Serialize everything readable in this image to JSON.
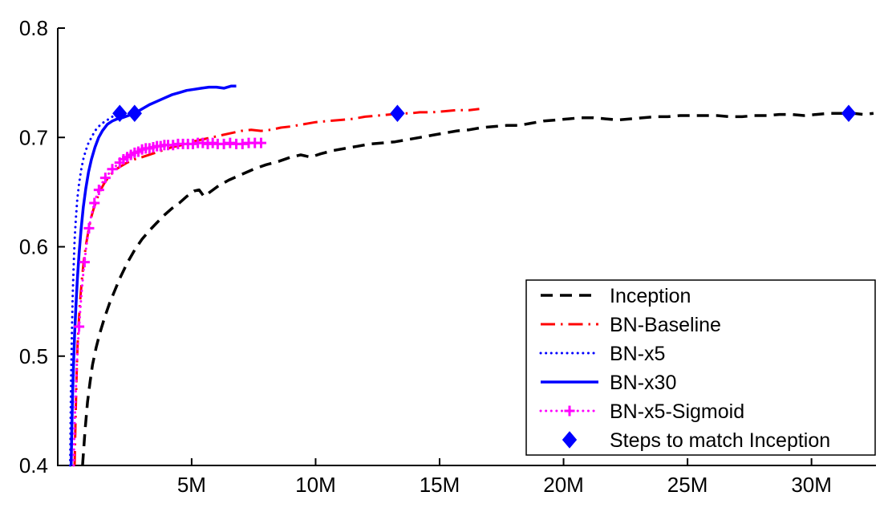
{
  "chart_data": {
    "type": "line",
    "grid": false,
    "background": "#ffffff",
    "axis_color": "#000000",
    "xlim": [
      -0.4,
      32.6
    ],
    "ylim": [
      0.4,
      0.8
    ],
    "x_ticks": [
      5,
      10,
      15,
      20,
      25,
      30
    ],
    "x_tick_labels": [
      "5M",
      "10M",
      "15M",
      "20M",
      "25M",
      "30M"
    ],
    "y_ticks": [
      0.4,
      0.5,
      0.6,
      0.7,
      0.8
    ],
    "y_tick_labels": [
      "0.4",
      "0.5",
      "0.6",
      "0.7",
      "0.8"
    ],
    "legend_position": "lower right",
    "series": [
      {
        "name": "Inception",
        "color": "#000000",
        "style": "dashed",
        "width": 3.5,
        "points": [
          [
            0.6,
            0.4
          ],
          [
            0.7,
            0.432
          ],
          [
            0.8,
            0.458
          ],
          [
            0.9,
            0.476
          ],
          [
            1.0,
            0.492
          ],
          [
            1.15,
            0.508
          ],
          [
            1.3,
            0.521
          ],
          [
            1.5,
            0.536
          ],
          [
            1.7,
            0.549
          ],
          [
            1.9,
            0.56
          ],
          [
            2.1,
            0.571
          ],
          [
            2.4,
            0.585
          ],
          [
            2.7,
            0.597
          ],
          [
            3.0,
            0.607
          ],
          [
            3.3,
            0.615
          ],
          [
            3.6,
            0.622
          ],
          [
            3.9,
            0.629
          ],
          [
            4.2,
            0.635
          ],
          [
            4.5,
            0.64
          ],
          [
            4.8,
            0.646
          ],
          [
            5.1,
            0.651
          ],
          [
            5.3,
            0.652
          ],
          [
            5.5,
            0.646
          ],
          [
            5.8,
            0.651
          ],
          [
            6.1,
            0.656
          ],
          [
            6.5,
            0.661
          ],
          [
            7.0,
            0.666
          ],
          [
            7.5,
            0.671
          ],
          [
            8.0,
            0.675
          ],
          [
            8.5,
            0.678
          ],
          [
            9.0,
            0.682
          ],
          [
            9.4,
            0.684
          ],
          [
            9.8,
            0.682
          ],
          [
            10.2,
            0.685
          ],
          [
            10.7,
            0.688
          ],
          [
            11.2,
            0.69
          ],
          [
            11.7,
            0.692
          ],
          [
            12.2,
            0.694
          ],
          [
            12.7,
            0.695
          ],
          [
            13.2,
            0.696
          ],
          [
            13.7,
            0.698
          ],
          [
            14.2,
            0.7
          ],
          [
            14.7,
            0.702
          ],
          [
            15.2,
            0.704
          ],
          [
            15.7,
            0.706
          ],
          [
            16.2,
            0.707
          ],
          [
            16.7,
            0.709
          ],
          [
            17.2,
            0.71
          ],
          [
            17.7,
            0.711
          ],
          [
            18.2,
            0.711
          ],
          [
            18.7,
            0.713
          ],
          [
            19.2,
            0.715
          ],
          [
            19.7,
            0.716
          ],
          [
            20.2,
            0.717
          ],
          [
            20.7,
            0.718
          ],
          [
            21.2,
            0.718
          ],
          [
            21.7,
            0.717
          ],
          [
            22.2,
            0.716
          ],
          [
            22.7,
            0.717
          ],
          [
            23.2,
            0.718
          ],
          [
            23.7,
            0.719
          ],
          [
            24.2,
            0.719
          ],
          [
            24.7,
            0.72
          ],
          [
            25.2,
            0.72
          ],
          [
            25.7,
            0.72
          ],
          [
            26.2,
            0.72
          ],
          [
            26.7,
            0.719
          ],
          [
            27.2,
            0.719
          ],
          [
            27.7,
            0.72
          ],
          [
            28.2,
            0.72
          ],
          [
            28.7,
            0.721
          ],
          [
            29.2,
            0.721
          ],
          [
            29.7,
            0.72
          ],
          [
            30.2,
            0.721
          ],
          [
            30.7,
            0.722
          ],
          [
            31.2,
            0.722
          ],
          [
            31.7,
            0.722
          ],
          [
            32.1,
            0.721
          ],
          [
            32.5,
            0.722
          ]
        ]
      },
      {
        "name": "BN-Baseline",
        "color": "#ff0000",
        "style": "dashdot",
        "width": 3,
        "points": [
          [
            0.28,
            0.4
          ],
          [
            0.32,
            0.447
          ],
          [
            0.36,
            0.483
          ],
          [
            0.4,
            0.51
          ],
          [
            0.45,
            0.532
          ],
          [
            0.5,
            0.55
          ],
          [
            0.58,
            0.572
          ],
          [
            0.66,
            0.589
          ],
          [
            0.75,
            0.603
          ],
          [
            0.85,
            0.616
          ],
          [
            0.95,
            0.627
          ],
          [
            1.05,
            0.635
          ],
          [
            1.2,
            0.645
          ],
          [
            1.35,
            0.653
          ],
          [
            1.5,
            0.659
          ],
          [
            1.7,
            0.665
          ],
          [
            1.9,
            0.67
          ],
          [
            2.1,
            0.673
          ],
          [
            2.4,
            0.677
          ],
          [
            2.7,
            0.68
          ],
          [
            3.0,
            0.682
          ],
          [
            3.4,
            0.685
          ],
          [
            3.8,
            0.688
          ],
          [
            4.2,
            0.691
          ],
          [
            4.6,
            0.693
          ],
          [
            5.0,
            0.696
          ],
          [
            5.4,
            0.698
          ],
          [
            5.8,
            0.7
          ],
          [
            6.2,
            0.702
          ],
          [
            6.6,
            0.704
          ],
          [
            7.0,
            0.706
          ],
          [
            7.4,
            0.707
          ],
          [
            7.8,
            0.706
          ],
          [
            8.2,
            0.707
          ],
          [
            8.6,
            0.709
          ],
          [
            9.0,
            0.71
          ],
          [
            9.5,
            0.712
          ],
          [
            10.0,
            0.714
          ],
          [
            10.5,
            0.715
          ],
          [
            11.0,
            0.716
          ],
          [
            11.5,
            0.717
          ],
          [
            12.0,
            0.719
          ],
          [
            12.5,
            0.72
          ],
          [
            13.0,
            0.721
          ],
          [
            13.4,
            0.722
          ],
          [
            13.8,
            0.722
          ],
          [
            14.2,
            0.723
          ],
          [
            14.7,
            0.723
          ],
          [
            15.2,
            0.724
          ],
          [
            15.7,
            0.725
          ],
          [
            16.2,
            0.725
          ],
          [
            16.6,
            0.726
          ]
        ]
      },
      {
        "name": "BN-x5",
        "color": "#0000ff",
        "style": "dotted",
        "width": 3,
        "points": [
          [
            0.1,
            0.4
          ],
          [
            0.12,
            0.445
          ],
          [
            0.14,
            0.482
          ],
          [
            0.17,
            0.52
          ],
          [
            0.2,
            0.552
          ],
          [
            0.24,
            0.582
          ],
          [
            0.28,
            0.606
          ],
          [
            0.33,
            0.626
          ],
          [
            0.39,
            0.644
          ],
          [
            0.46,
            0.658
          ],
          [
            0.54,
            0.67
          ],
          [
            0.63,
            0.68
          ],
          [
            0.73,
            0.688
          ],
          [
            0.84,
            0.695
          ],
          [
            0.96,
            0.7
          ],
          [
            1.1,
            0.706
          ],
          [
            1.25,
            0.71
          ],
          [
            1.4,
            0.713
          ],
          [
            1.6,
            0.716
          ],
          [
            1.8,
            0.719
          ],
          [
            2.0,
            0.721
          ],
          [
            2.15,
            0.722
          ]
        ]
      },
      {
        "name": "BN-x30",
        "color": "#0000ff",
        "style": "solid",
        "width": 3.5,
        "points": [
          [
            0.14,
            0.4
          ],
          [
            0.17,
            0.435
          ],
          [
            0.2,
            0.465
          ],
          [
            0.24,
            0.495
          ],
          [
            0.28,
            0.52
          ],
          [
            0.33,
            0.545
          ],
          [
            0.39,
            0.57
          ],
          [
            0.46,
            0.594
          ],
          [
            0.54,
            0.616
          ],
          [
            0.63,
            0.636
          ],
          [
            0.73,
            0.653
          ],
          [
            0.84,
            0.668
          ],
          [
            0.96,
            0.68
          ],
          [
            1.1,
            0.691
          ],
          [
            1.25,
            0.7
          ],
          [
            1.4,
            0.706
          ],
          [
            1.6,
            0.712
          ],
          [
            1.8,
            0.715
          ],
          [
            2.0,
            0.717
          ],
          [
            2.2,
            0.718
          ],
          [
            2.45,
            0.72
          ],
          [
            2.7,
            0.722
          ],
          [
            3.0,
            0.726
          ],
          [
            3.3,
            0.73
          ],
          [
            3.6,
            0.733
          ],
          [
            3.9,
            0.736
          ],
          [
            4.2,
            0.739
          ],
          [
            4.5,
            0.741
          ],
          [
            4.8,
            0.743
          ],
          [
            5.1,
            0.744
          ],
          [
            5.4,
            0.745
          ],
          [
            5.7,
            0.746
          ],
          [
            6.0,
            0.746
          ],
          [
            6.3,
            0.745
          ],
          [
            6.6,
            0.747
          ],
          [
            6.8,
            0.747
          ]
        ]
      },
      {
        "name": "BN-x5-Sigmoid",
        "color": "#ff00ff",
        "style": "dotted",
        "width": 3,
        "marker": "plus",
        "points": [
          [
            0.24,
            0.4
          ],
          [
            0.28,
            0.436
          ],
          [
            0.32,
            0.465
          ],
          [
            0.37,
            0.492
          ],
          [
            0.42,
            0.513
          ],
          [
            0.46,
            0.527
          ],
          [
            0.52,
            0.546
          ],
          [
            0.58,
            0.563
          ],
          [
            0.64,
            0.578
          ],
          [
            0.68,
            0.586
          ],
          [
            0.74,
            0.598
          ],
          [
            0.8,
            0.608
          ],
          [
            0.86,
            0.617
          ],
          [
            0.93,
            0.626
          ],
          [
            1.0,
            0.633
          ],
          [
            1.08,
            0.64
          ],
          [
            1.16,
            0.646
          ],
          [
            1.26,
            0.652
          ],
          [
            1.38,
            0.658
          ],
          [
            1.52,
            0.663
          ],
          [
            1.66,
            0.667
          ],
          [
            1.8,
            0.671
          ],
          [
            1.95,
            0.674
          ],
          [
            2.1,
            0.677
          ],
          [
            2.25,
            0.68
          ],
          [
            2.4,
            0.682
          ],
          [
            2.55,
            0.684
          ],
          [
            2.7,
            0.686
          ],
          [
            2.85,
            0.687
          ],
          [
            3.0,
            0.689
          ],
          [
            3.15,
            0.69
          ],
          [
            3.3,
            0.69
          ],
          [
            3.45,
            0.691
          ],
          [
            3.6,
            0.692
          ],
          [
            3.75,
            0.692
          ],
          [
            3.9,
            0.693
          ],
          [
            4.05,
            0.693
          ],
          [
            4.25,
            0.693
          ],
          [
            4.45,
            0.694
          ],
          [
            4.65,
            0.694
          ],
          [
            4.85,
            0.694
          ],
          [
            5.05,
            0.694
          ],
          [
            5.25,
            0.695
          ],
          [
            5.45,
            0.695
          ],
          [
            5.65,
            0.694
          ],
          [
            5.85,
            0.695
          ],
          [
            6.05,
            0.694
          ],
          [
            6.3,
            0.694
          ],
          [
            6.55,
            0.695
          ],
          [
            6.8,
            0.694
          ],
          [
            7.05,
            0.694
          ],
          [
            7.3,
            0.695
          ],
          [
            7.55,
            0.695
          ],
          [
            7.8,
            0.695
          ]
        ],
        "marker_points": [
          [
            0.46,
            0.527
          ],
          [
            0.68,
            0.586
          ],
          [
            0.86,
            0.617
          ],
          [
            1.08,
            0.64
          ],
          [
            1.26,
            0.652
          ],
          [
            1.52,
            0.663
          ],
          [
            1.8,
            0.671
          ],
          [
            2.1,
            0.677
          ],
          [
            2.25,
            0.68
          ],
          [
            2.4,
            0.682
          ],
          [
            2.55,
            0.684
          ],
          [
            2.7,
            0.686
          ],
          [
            2.85,
            0.687
          ],
          [
            3.0,
            0.689
          ],
          [
            3.15,
            0.69
          ],
          [
            3.3,
            0.69
          ],
          [
            3.45,
            0.691
          ],
          [
            3.6,
            0.692
          ],
          [
            3.75,
            0.692
          ],
          [
            3.9,
            0.693
          ],
          [
            4.05,
            0.693
          ],
          [
            4.25,
            0.693
          ],
          [
            4.45,
            0.694
          ],
          [
            4.65,
            0.694
          ],
          [
            4.85,
            0.694
          ],
          [
            5.05,
            0.694
          ],
          [
            5.25,
            0.695
          ],
          [
            5.45,
            0.695
          ],
          [
            5.65,
            0.694
          ],
          [
            5.85,
            0.695
          ],
          [
            6.05,
            0.694
          ],
          [
            6.3,
            0.694
          ],
          [
            6.55,
            0.695
          ],
          [
            6.8,
            0.694
          ],
          [
            7.05,
            0.694
          ],
          [
            7.3,
            0.695
          ],
          [
            7.55,
            0.695
          ],
          [
            7.8,
            0.695
          ]
        ]
      },
      {
        "name": "Steps to match Inception",
        "color": "#0000ff",
        "style": "none",
        "marker": "diamond",
        "points": [
          [
            2.1,
            0.722
          ],
          [
            2.7,
            0.722
          ],
          [
            13.3,
            0.722
          ],
          [
            31.5,
            0.722
          ]
        ]
      }
    ]
  }
}
